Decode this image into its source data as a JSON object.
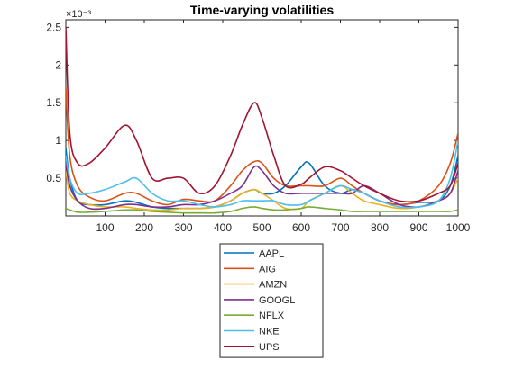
{
  "chart_data": {
    "type": "line",
    "title": "Time-varying volatilities",
    "exponent_label": "×10⁻³",
    "xlabel": "",
    "ylabel": "",
    "xlim": [
      0,
      1000
    ],
    "ylim": [
      0,
      0.0026
    ],
    "x_ticks": [
      100,
      200,
      300,
      400,
      500,
      600,
      700,
      800,
      900,
      1000
    ],
    "x_tick_labels": [
      "100",
      "200",
      "300",
      "400",
      "500",
      "600",
      "700",
      "800",
      "900",
      "1000"
    ],
    "y_ticks": [
      0.0005,
      0.001,
      0.0015,
      0.002,
      0.0025
    ],
    "y_tick_labels": [
      "0.5",
      "1",
      "1.5",
      "2",
      "2.5"
    ],
    "grid": false,
    "legend_position": "below-center",
    "x": [
      0,
      10,
      30,
      60,
      100,
      150,
      180,
      220,
      260,
      300,
      340,
      380,
      420,
      450,
      480,
      500,
      530,
      560,
      600,
      620,
      660,
      700,
      730,
      760,
      800,
      850,
      900,
      950,
      980,
      1000
    ],
    "series": [
      {
        "name": "AAPL",
        "color": "#0072BD",
        "values": [
          0.0009,
          0.0005,
          0.0002,
          0.00015,
          0.00015,
          0.0002,
          0.00018,
          0.00012,
          0.0001,
          0.0001,
          0.0001,
          0.00012,
          0.0002,
          0.0003,
          0.00035,
          0.0003,
          0.0003,
          0.0004,
          0.00065,
          0.0007,
          0.0004,
          0.0003,
          0.00035,
          0.0003,
          0.0002,
          0.00015,
          0.00018,
          0.0002,
          0.0004,
          0.0008
        ]
      },
      {
        "name": "AIG",
        "color": "#D95319",
        "values": [
          0.0017,
          0.0008,
          0.0004,
          0.00025,
          0.0002,
          0.0003,
          0.0003,
          0.0002,
          0.00015,
          0.00022,
          0.0002,
          0.0002,
          0.0004,
          0.0006,
          0.00072,
          0.0007,
          0.0005,
          0.0004,
          0.0004,
          0.0004,
          0.0004,
          0.0005,
          0.0004,
          0.0003,
          0.0002,
          0.00015,
          0.0002,
          0.0004,
          0.0007,
          0.0011
        ]
      },
      {
        "name": "AMZN",
        "color": "#EDB120",
        "values": [
          0.0006,
          0.0003,
          0.0002,
          0.00015,
          0.00012,
          0.00012,
          0.0001,
          8e-05,
          8e-05,
          0.0001,
          0.0001,
          0.00012,
          0.0002,
          0.0003,
          0.00035,
          0.0003,
          0.0002,
          0.0001,
          0.0001,
          0.0002,
          0.0003,
          0.0004,
          0.0003,
          0.0002,
          0.00015,
          0.0001,
          0.00012,
          0.0002,
          0.0003,
          0.0005
        ]
      },
      {
        "name": "GOOGL",
        "color": "#7E2F8E",
        "values": [
          0.0007,
          0.0004,
          0.0002,
          0.0001,
          0.0001,
          0.00015,
          0.00015,
          0.00012,
          0.00012,
          0.00015,
          0.00015,
          0.0002,
          0.0003,
          0.0004,
          0.00065,
          0.0006,
          0.0004,
          0.0003,
          0.0003,
          0.0003,
          0.0003,
          0.0003,
          0.0003,
          0.0004,
          0.0003,
          0.00015,
          0.00012,
          0.0002,
          0.0003,
          0.0006
        ]
      },
      {
        "name": "NFLX",
        "color": "#77AC30",
        "values": [
          0.0001,
          8e-05,
          5e-05,
          5e-05,
          6e-05,
          8e-05,
          8e-05,
          6e-05,
          5e-05,
          4e-05,
          4e-05,
          4e-05,
          6e-05,
          0.0001,
          0.00012,
          0.0001,
          8e-05,
          8e-05,
          0.0001,
          0.00012,
          0.0001,
          8e-05,
          6e-05,
          6e-05,
          6e-05,
          6e-05,
          6e-05,
          6e-05,
          6e-05,
          8e-05
        ]
      },
      {
        "name": "NKE",
        "color": "#4DBEEE",
        "values": [
          0.0008,
          0.0005,
          0.0003,
          0.0003,
          0.00035,
          0.00045,
          0.0005,
          0.0003,
          0.0002,
          0.0002,
          0.00015,
          0.00012,
          0.00015,
          0.0002,
          0.0002,
          0.0002,
          0.0002,
          0.00015,
          0.00015,
          0.0002,
          0.0003,
          0.0004,
          0.00035,
          0.0003,
          0.0002,
          0.00012,
          0.00012,
          0.0002,
          0.0005,
          0.001
        ]
      },
      {
        "name": "UPS",
        "color": "#A2142F",
        "values": [
          0.0025,
          0.0011,
          0.0007,
          0.0007,
          0.0009,
          0.0012,
          0.001,
          0.0005,
          0.0005,
          0.0005,
          0.0003,
          0.0004,
          0.0008,
          0.0012,
          0.0015,
          0.0013,
          0.0008,
          0.0004,
          0.00042,
          0.0005,
          0.00065,
          0.0006,
          0.0005,
          0.0004,
          0.0003,
          0.0002,
          0.0002,
          0.0003,
          0.0004,
          0.0007
        ]
      }
    ]
  }
}
